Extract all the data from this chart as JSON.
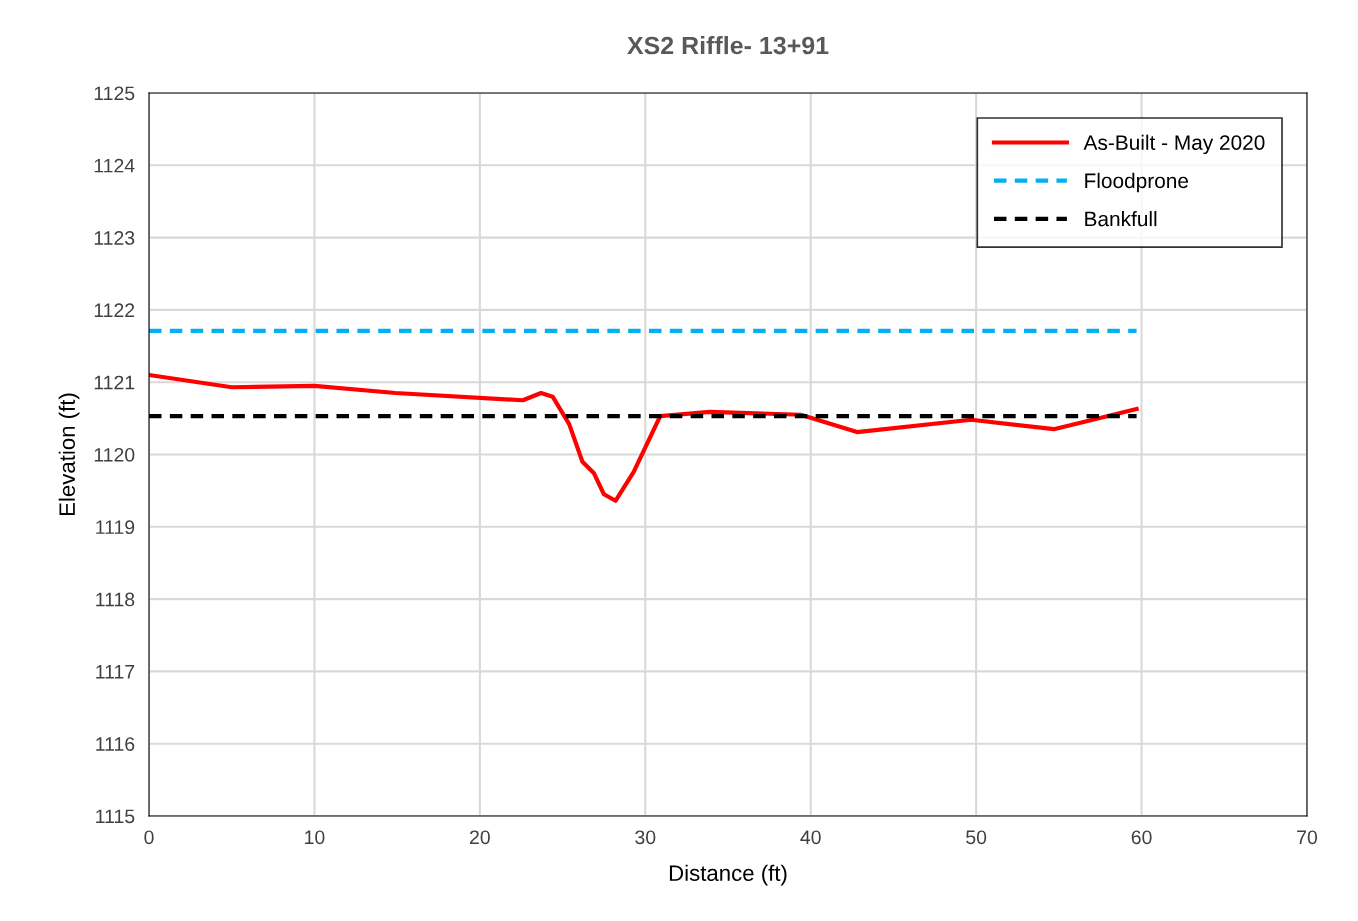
{
  "chart_data": {
    "type": "line",
    "title": "XS2 Riffle- 13+91",
    "xlabel": "Distance (ft)",
    "ylabel": "Elevation (ft)",
    "xlim": [
      0,
      70
    ],
    "xticks": [
      0,
      10,
      20,
      30,
      40,
      50,
      60,
      70
    ],
    "ylim": [
      1115,
      1125
    ],
    "yticks": [
      1115,
      1116,
      1117,
      1118,
      1119,
      1120,
      1121,
      1122,
      1123,
      1124,
      1125
    ],
    "grid": true,
    "legend": "top right",
    "marker": "none",
    "series": [
      {
        "name": "As-Built - May 2020",
        "color": "#ff0000",
        "line_style": "solid",
        "x": [
          0,
          5.0,
          10,
          14.9,
          22.6,
          23.7,
          24.4,
          25.4,
          26.2,
          26.9,
          27.5,
          28.2,
          29.3,
          30.9,
          33.9,
          39.4,
          42.8,
          49.7,
          54.7,
          59.7
        ],
        "values": [
          1121.1,
          1120.93,
          1120.95,
          1120.85,
          1120.75,
          1120.85,
          1120.8,
          1120.42,
          1119.9,
          1119.74,
          1119.45,
          1119.36,
          1119.76,
          1120.53,
          1120.59,
          1120.55,
          1120.31,
          1120.48,
          1120.35,
          1120.63
        ]
      },
      {
        "name": "Floodprone",
        "color": "#00b0f0",
        "line_style": "dashed",
        "x": [
          0,
          59.7
        ],
        "values": [
          1121.71,
          1121.71
        ]
      },
      {
        "name": "Bankfull",
        "color": "#000000",
        "line_style": "dashed",
        "x": [
          0,
          59.7
        ],
        "values": [
          1120.53,
          1120.53
        ]
      }
    ]
  }
}
